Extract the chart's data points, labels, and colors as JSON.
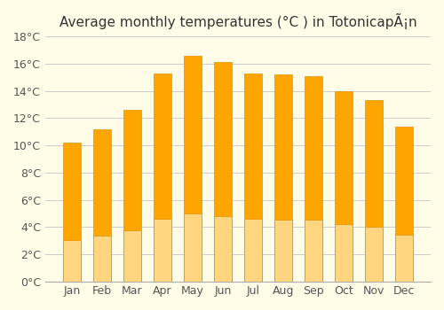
{
  "title": "Average monthly temperatures (°C ) in TotonicapÃ¡n",
  "months": [
    "Jan",
    "Feb",
    "Mar",
    "Apr",
    "May",
    "Jun",
    "Jul",
    "Aug",
    "Sep",
    "Oct",
    "Nov",
    "Dec"
  ],
  "values": [
    10.2,
    11.2,
    12.6,
    15.3,
    16.6,
    16.1,
    15.3,
    15.2,
    15.1,
    14.0,
    13.3,
    11.4
  ],
  "bar_color_top": "#FFA500",
  "bar_color_bottom": "#FFD580",
  "background_color": "#FFFDE7",
  "grid_color": "#CCCCCC",
  "ylim": [
    0,
    18
  ],
  "yticks": [
    0,
    2,
    4,
    6,
    8,
    10,
    12,
    14,
    16,
    18
  ],
  "ytick_labels": [
    "0°C",
    "2°C",
    "4°C",
    "6°C",
    "8°C",
    "10°C",
    "12°C",
    "14°C",
    "16°C",
    "18°C"
  ],
  "title_fontsize": 11,
  "tick_fontsize": 9,
  "bar_edge_color": "#E69000",
  "bar_width": 0.6
}
